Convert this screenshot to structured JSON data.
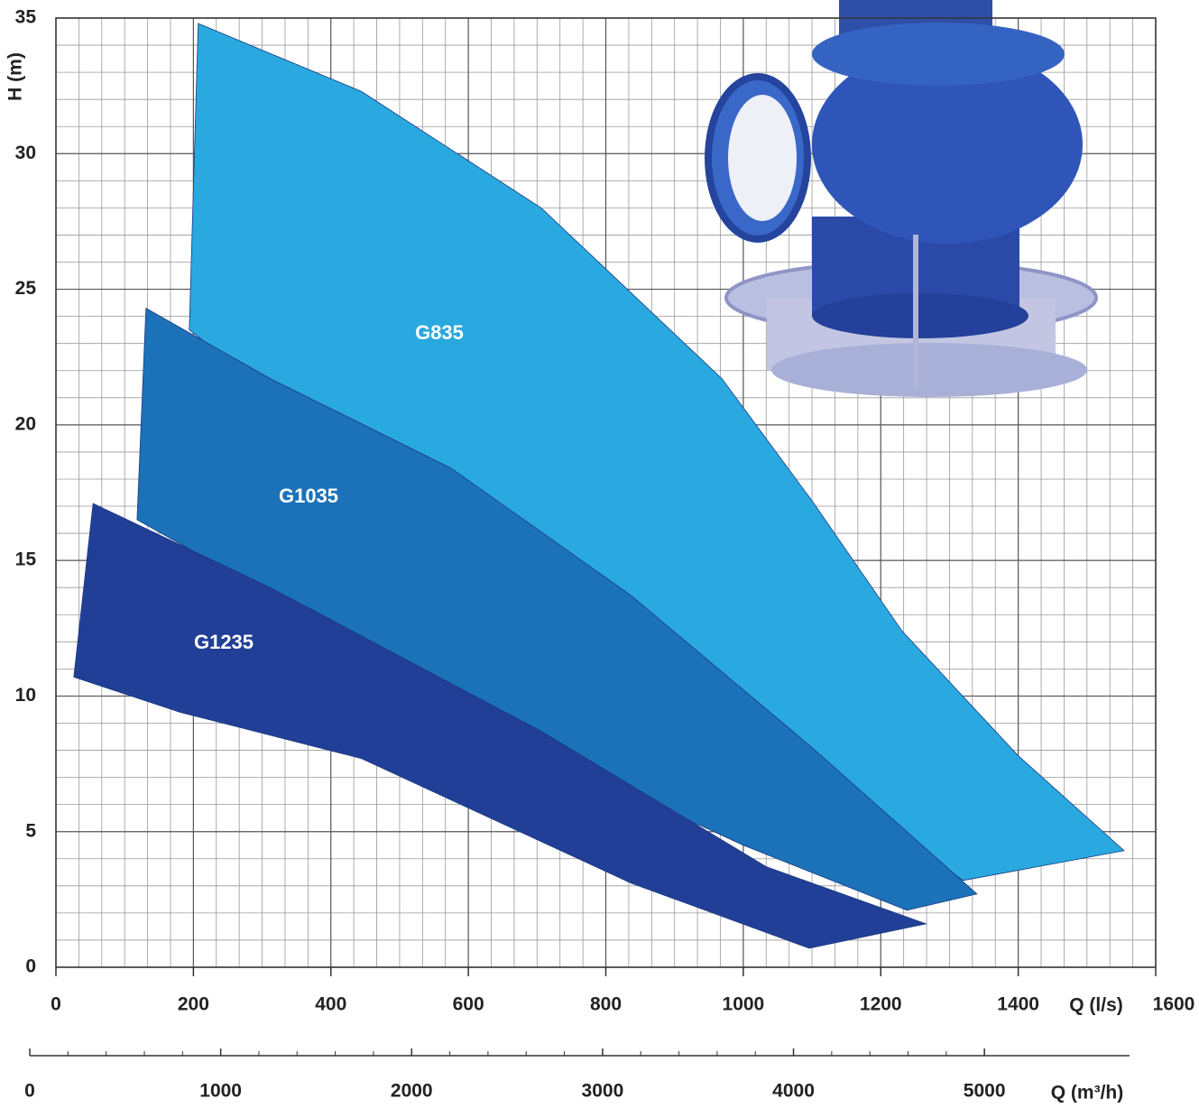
{
  "chart_data": {
    "type": "area",
    "x_label": "Q (l/s)",
    "y_label": "H (m)",
    "xlim": [
      0,
      1600
    ],
    "xticks": [
      0,
      200,
      400,
      600,
      800,
      1000,
      1200,
      1400,
      1600
    ],
    "ylim": [
      0,
      35
    ],
    "yticks": [
      0,
      5,
      10,
      15,
      20,
      25,
      30,
      35
    ],
    "x2_label": "Q (m³/h)",
    "x2lim": [
      0,
      5760
    ],
    "x2ticks": [
      0,
      1000,
      2000,
      3000,
      4000,
      5000
    ],
    "grid": true,
    "series": [
      {
        "name": "G835",
        "color": "#2aa8e0",
        "x": [
          207,
          444,
          706,
          969,
          1100,
          1231,
          1400,
          1554,
          1320,
          1100,
          800,
          500,
          194
        ],
        "values": [
          34.8,
          32.3,
          28.0,
          21.7,
          17.2,
          12.4,
          7.8,
          4.3,
          3.2,
          7.0,
          12.5,
          17.5,
          23.5
        ]
      },
      {
        "name": "G1035",
        "color": "#1b72b8",
        "x": [
          131,
          312,
          575,
          837,
          1100,
          1340,
          1238,
          1000,
          700,
          400,
          118
        ],
        "values": [
          24.3,
          21.7,
          18.4,
          13.7,
          8.1,
          2.7,
          2.1,
          4.5,
          8.0,
          12.5,
          16.5
        ]
      },
      {
        "name": "G1235",
        "color": "#213f96",
        "x": [
          54,
          312,
          706,
          1034,
          1266,
          1096,
          837,
          444,
          181,
          26
        ],
        "values": [
          17.1,
          14.0,
          8.7,
          3.7,
          1.6,
          0.7,
          3.1,
          7.7,
          9.4,
          10.7
        ]
      }
    ]
  }
}
